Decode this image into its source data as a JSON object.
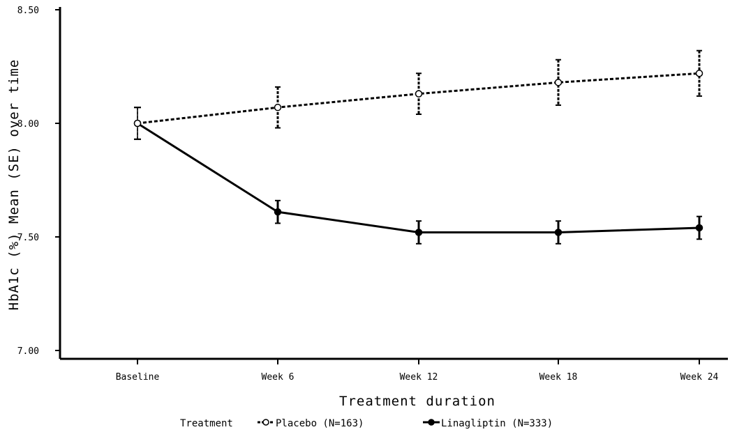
{
  "chart_data": {
    "type": "line",
    "xlabel": "Treatment duration",
    "ylabel": "HbA1c (%) Mean (SE) over time",
    "categories": [
      "Baseline",
      "Week 6",
      "Week 12",
      "Week 18",
      "Week 24"
    ],
    "ylim": [
      7.0,
      8.5
    ],
    "yticks": [
      "7.00",
      "7.50",
      "8.00",
      "8.50"
    ],
    "grid": false,
    "legend": {
      "title": "Treatment",
      "placement": "bottom"
    },
    "series": [
      {
        "name": "Placebo (N=163)",
        "line_style": "dashed",
        "marker": "open-circle",
        "color": "#000000",
        "values": [
          8.0,
          8.07,
          8.13,
          8.18,
          8.22
        ],
        "se": [
          0.07,
          0.09,
          0.09,
          0.1,
          0.1
        ]
      },
      {
        "name": "Linagliptin (N=333)",
        "line_style": "solid",
        "marker": "filled-circle",
        "color": "#000000",
        "values": [
          8.0,
          7.61,
          7.52,
          7.52,
          7.54
        ],
        "se": [
          0.07,
          0.05,
          0.05,
          0.05,
          0.05
        ]
      }
    ]
  }
}
